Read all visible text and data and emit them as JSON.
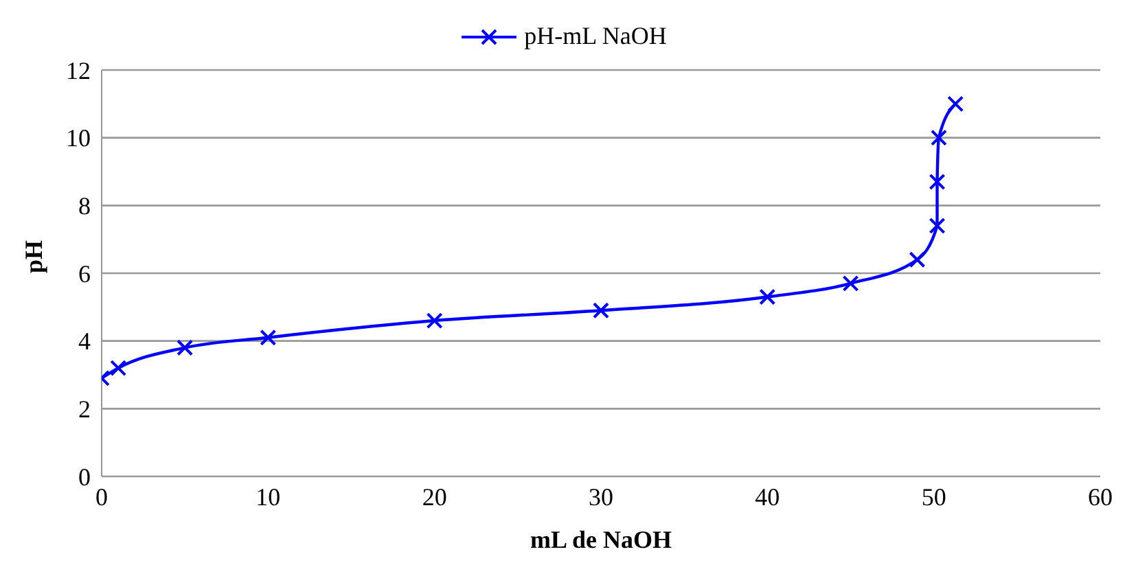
{
  "chart_data": {
    "type": "line",
    "xlabel": "mL de NaOH",
    "ylabel": "pH",
    "x": [
      0,
      1,
      5,
      10,
      20,
      30,
      40,
      45,
      49,
      50.2,
      50.2,
      50.3,
      51.3
    ],
    "series": [
      {
        "name": "pH-mL NaOH",
        "color": "#0000ff",
        "values": [
          2.9,
          3.2,
          3.8,
          4.1,
          4.6,
          4.9,
          5.3,
          5.7,
          6.4,
          7.4,
          8.7,
          10,
          11
        ]
      }
    ],
    "xlim": [
      0,
      60
    ],
    "xticks": [
      0,
      10,
      20,
      30,
      40,
      50,
      60
    ],
    "ylim": [
      0,
      12
    ],
    "yticks": [
      0,
      2,
      4,
      6,
      8,
      10,
      12
    ],
    "grid": "y",
    "legend": "top",
    "marker": "cross",
    "line_style": "solid"
  }
}
